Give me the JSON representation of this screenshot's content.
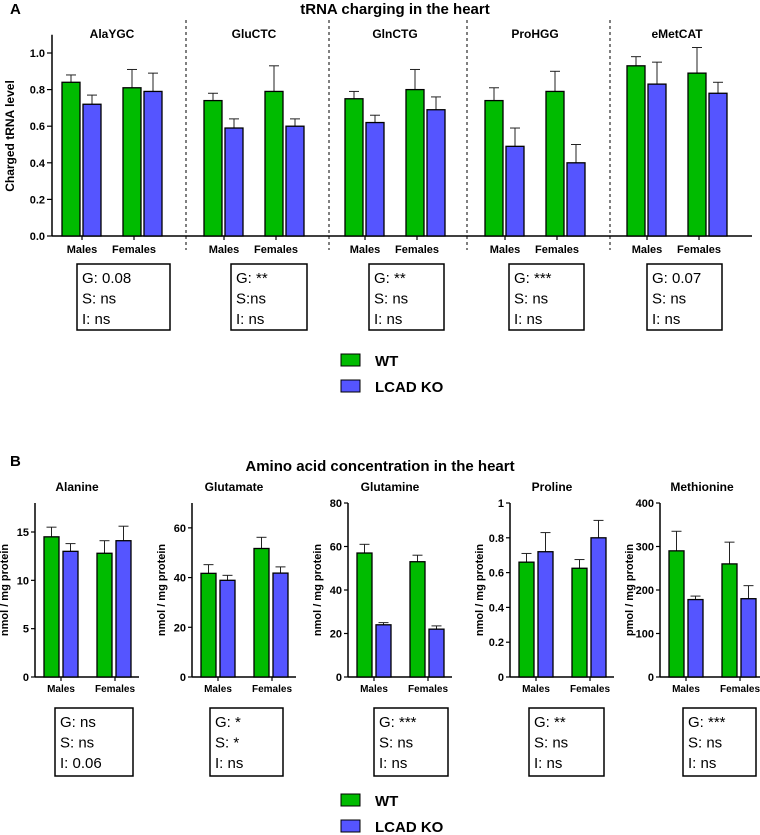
{
  "colors": {
    "WT": "#00bb00",
    "LCAD KO": "#5555ff",
    "axis": "#000000"
  },
  "legend": [
    "WT",
    "LCAD KO"
  ],
  "x_categories": [
    "Males",
    "Females"
  ],
  "chart_data": [
    {
      "panel": "A",
      "title": "tRNA charging in the heart",
      "type": "bar",
      "ylabel": "Charged tRNA level",
      "ylim": [
        0,
        1.1
      ],
      "yticks": [
        "0.0",
        "0.2",
        "0.4",
        "0.6",
        "0.8",
        "1.0"
      ],
      "grid": false,
      "legend_placement": "bottom",
      "groups": [
        {
          "name": "AlaYGC",
          "series": [
            {
              "name": "WT",
              "values": [
                0.84,
                0.81
              ],
              "sd": [
                0.04,
                0.1
              ]
            },
            {
              "name": "LCAD KO",
              "values": [
                0.72,
                0.79
              ],
              "sd": [
                0.05,
                0.1
              ]
            }
          ],
          "stats": [
            "G: 0.08",
            "S: ns",
            "I: ns"
          ]
        },
        {
          "name": "GluCTC",
          "series": [
            {
              "name": "WT",
              "values": [
                0.74,
                0.79
              ],
              "sd": [
                0.04,
                0.14
              ]
            },
            {
              "name": "LCAD KO",
              "values": [
                0.59,
                0.6
              ],
              "sd": [
                0.05,
                0.04
              ]
            }
          ],
          "stats": [
            "G: **",
            "S:ns",
            "I: ns"
          ]
        },
        {
          "name": "GlnCTG",
          "series": [
            {
              "name": "WT",
              "values": [
                0.75,
                0.8
              ],
              "sd": [
                0.04,
                0.11
              ]
            },
            {
              "name": "LCAD KO",
              "values": [
                0.62,
                0.69
              ],
              "sd": [
                0.04,
                0.07
              ]
            }
          ],
          "stats": [
            "G: **",
            "S: ns",
            "I: ns"
          ]
        },
        {
          "name": "ProHGG",
          "series": [
            {
              "name": "WT",
              "values": [
                0.74,
                0.79
              ],
              "sd": [
                0.07,
                0.11
              ]
            },
            {
              "name": "LCAD KO",
              "values": [
                0.49,
                0.4
              ],
              "sd": [
                0.1,
                0.1
              ]
            }
          ],
          "stats": [
            "G: ***",
            "S: ns",
            "I: ns"
          ]
        },
        {
          "name": "eMetCAT",
          "series": [
            {
              "name": "WT",
              "values": [
                0.93,
                0.89
              ],
              "sd": [
                0.05,
                0.14
              ]
            },
            {
              "name": "LCAD KO",
              "values": [
                0.83,
                0.78
              ],
              "sd": [
                0.12,
                0.06
              ]
            }
          ],
          "stats": [
            "G: 0.07",
            "S: ns",
            "I: ns"
          ]
        }
      ]
    },
    {
      "panel": "B",
      "title": "Amino acid concentration in the heart",
      "type": "bar",
      "grid": false,
      "legend_placement": "bottom",
      "groups": [
        {
          "name": "Alanine",
          "ylabel": "nmol / mg protein",
          "ylim": [
            0,
            18
          ],
          "yticks": [
            "0",
            "5",
            "10",
            "15"
          ],
          "series": [
            {
              "name": "WT",
              "values": [
                14.5,
                12.8
              ],
              "sd": [
                1.0,
                1.3
              ]
            },
            {
              "name": "LCAD KO",
              "values": [
                13.0,
                14.1
              ],
              "sd": [
                0.8,
                1.5
              ]
            }
          ],
          "stats": [
            "G: ns",
            "S: ns",
            "I: 0.06"
          ]
        },
        {
          "name": "Glutamate",
          "ylabel": "nmol / mg protein",
          "ylim": [
            0,
            70
          ],
          "yticks": [
            "0",
            "20",
            "40",
            "60"
          ],
          "series": [
            {
              "name": "WT",
              "values": [
                41.7,
                51.7
              ],
              "sd": [
                3.5,
                4.5
              ]
            },
            {
              "name": "LCAD KO",
              "values": [
                38.9,
                41.8
              ],
              "sd": [
                2.0,
                2.5
              ]
            }
          ],
          "stats": [
            "G: *",
            "S: *",
            "I: ns"
          ]
        },
        {
          "name": "Glutamine",
          "ylabel": "nmol / mg protein",
          "ylim": [
            0,
            80
          ],
          "yticks": [
            "0",
            "20",
            "40",
            "60",
            "80"
          ],
          "series": [
            {
              "name": "WT",
              "values": [
                57,
                53
              ],
              "sd": [
                4,
                3
              ]
            },
            {
              "name": "LCAD KO",
              "values": [
                24,
                22
              ],
              "sd": [
                1,
                1.5
              ]
            }
          ],
          "stats": [
            "G: ***",
            "S: ns",
            "I: ns"
          ]
        },
        {
          "name": "Proline",
          "ylabel": "nmol / mg protein",
          "ylim": [
            0,
            1
          ],
          "yticks": [
            "0",
            "0.2",
            "0.4",
            "0.6",
            "0.8",
            "1"
          ],
          "series": [
            {
              "name": "WT",
              "values": [
                0.66,
                0.625
              ],
              "sd": [
                0.05,
                0.05
              ]
            },
            {
              "name": "LCAD KO",
              "values": [
                0.72,
                0.8
              ],
              "sd": [
                0.11,
                0.1
              ]
            }
          ],
          "stats": [
            "G: **",
            "S: ns",
            "I: ns"
          ]
        },
        {
          "name": "Methionine",
          "ylabel": "pmol / mg protein",
          "ylim": [
            0,
            400
          ],
          "yticks": [
            "0",
            "100",
            "200",
            "300",
            "400"
          ],
          "series": [
            {
              "name": "WT",
              "values": [
                290,
                260
              ],
              "sd": [
                45,
                50
              ]
            },
            {
              "name": "LCAD KO",
              "values": [
                178,
                180
              ],
              "sd": [
                8,
                30
              ]
            }
          ],
          "stats": [
            "G: ***",
            "S: ns",
            "I: ns"
          ]
        }
      ]
    }
  ]
}
